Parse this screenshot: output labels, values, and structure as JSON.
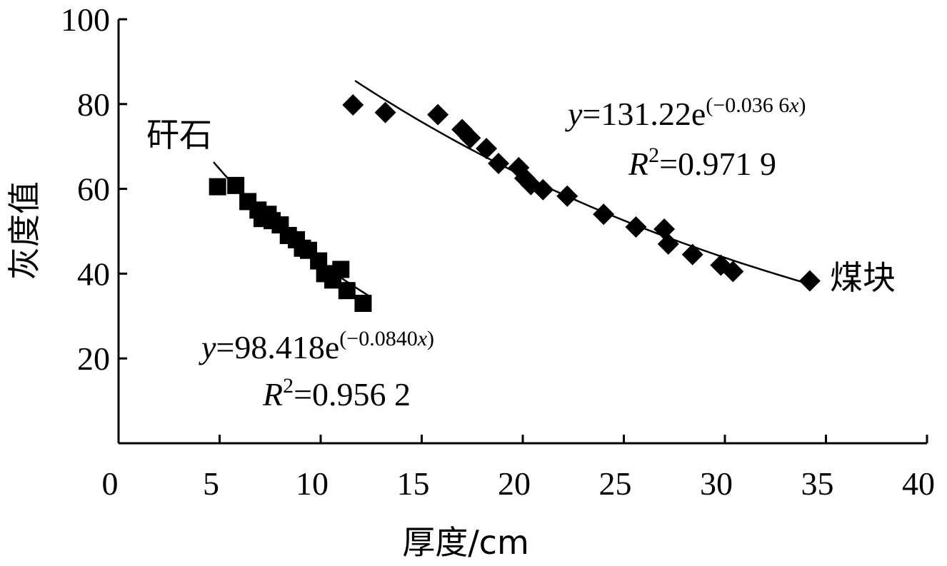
{
  "chart_data": {
    "type": "scatter",
    "xlabel": "厚度/cm",
    "ylabel": "灰度值",
    "xlim": [
      0,
      40
    ],
    "ylim": [
      0,
      100
    ],
    "xticks": [
      "0",
      "5",
      "10",
      "15",
      "20",
      "25",
      "30",
      "35",
      "40"
    ],
    "yticks": [
      "20",
      "40",
      "60",
      "80",
      "100"
    ],
    "grid": false,
    "series": [
      {
        "name": "矸石",
        "marker": "square",
        "color": "#000000",
        "points": [
          [
            4.9,
            60.5
          ],
          [
            5.8,
            60.8
          ],
          [
            6.4,
            57.0
          ],
          [
            6.9,
            55.0
          ],
          [
            7.1,
            53.0
          ],
          [
            7.4,
            54.0
          ],
          [
            7.6,
            52.5
          ],
          [
            8.0,
            51.5
          ],
          [
            8.4,
            49.0
          ],
          [
            8.8,
            48.0
          ],
          [
            9.1,
            46.0
          ],
          [
            9.4,
            45.5
          ],
          [
            9.9,
            43.0
          ],
          [
            10.2,
            40.0
          ],
          [
            10.6,
            38.5
          ],
          [
            11.0,
            41.0
          ],
          [
            11.3,
            36.0
          ],
          [
            12.1,
            33.0
          ]
        ],
        "fit": {
          "a": 98.418,
          "b": -0.084,
          "xrange": [
            4.7,
            12.4
          ],
          "equation_prefix": "=98.418e",
          "exponent": "(−0.0840",
          "r2": "=0.956 2"
        }
      },
      {
        "name": "煤块",
        "marker": "diamond",
        "color": "#000000",
        "points": [
          [
            11.6,
            79.8
          ],
          [
            13.2,
            78.0
          ],
          [
            15.8,
            77.5
          ],
          [
            17.0,
            74.0
          ],
          [
            17.4,
            72.0
          ],
          [
            18.2,
            69.5
          ],
          [
            18.8,
            66.0
          ],
          [
            19.8,
            65.0
          ],
          [
            20.1,
            62.5
          ],
          [
            20.4,
            61.0
          ],
          [
            21.0,
            59.8
          ],
          [
            22.2,
            58.3
          ],
          [
            24.0,
            54.0
          ],
          [
            25.6,
            51.0
          ],
          [
            27.0,
            50.5
          ],
          [
            27.2,
            47.0
          ],
          [
            28.4,
            44.5
          ],
          [
            29.8,
            42.0
          ],
          [
            30.4,
            40.5
          ],
          [
            34.2,
            38.3
          ]
        ],
        "fit": {
          "a": 131.22,
          "b": -0.0366,
          "xrange": [
            11.7,
            34.2
          ],
          "equation_prefix": "=131.22e",
          "exponent": "(−0.036 6",
          "r2": "=0.971 9"
        }
      }
    ],
    "annotations": {
      "y_symbol": "y",
      "x_symbol": "x",
      "r_symbol": "R",
      "r_power": "2",
      "close_paren": ")"
    }
  }
}
